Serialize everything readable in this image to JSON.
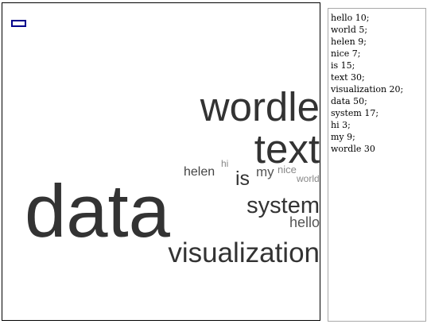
{
  "textarea": {
    "value": "hello 10;\nworld 5;\nhelen 9;\nnice 7;\nis 15;\ntext 30;\nvisualization 20;\ndata 50;\nsystem 17;\nhi 3;\nmy 9;\nwordle 30"
  },
  "cloud": {
    "words": [
      {
        "text": "wordle",
        "color": "#333333"
      },
      {
        "text": "text",
        "color": "#333333"
      },
      {
        "text": "helen",
        "color": "#444444"
      },
      {
        "text": "hi",
        "color": "#888888"
      },
      {
        "text": "is",
        "color": "#333333"
      },
      {
        "text": "my",
        "color": "#555555"
      },
      {
        "text": "nice",
        "color": "#888888"
      },
      {
        "text": "world",
        "color": "#888888"
      },
      {
        "text": "data",
        "color": "#333333"
      },
      {
        "text": "system",
        "color": "#333333"
      },
      {
        "text": "hello",
        "color": "#555555"
      },
      {
        "text": "visualization",
        "color": "#333333"
      }
    ]
  },
  "colors": {
    "frame": "#000000",
    "mini_rect": "#00008b",
    "textarea_border": "#a9a9a9"
  }
}
